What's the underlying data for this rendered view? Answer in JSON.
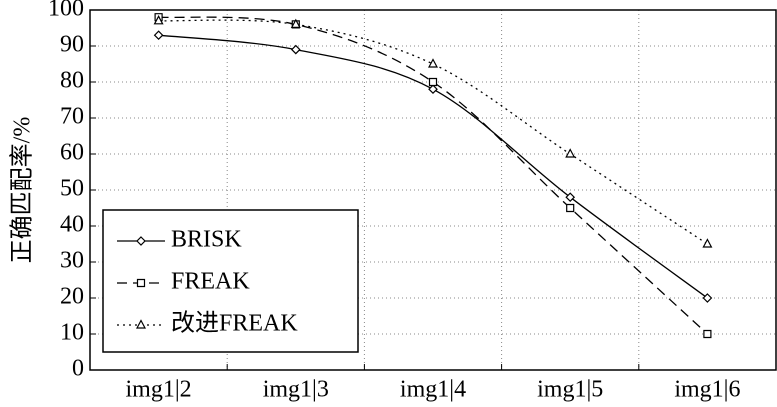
{
  "chart_data": {
    "type": "line",
    "ylabel": "正确匹配率/%",
    "categories": [
      "img1|2",
      "img1|3",
      "img1|4",
      "img1|5",
      "img1|6"
    ],
    "ylim": [
      0,
      100
    ],
    "yticks": [
      0,
      10,
      20,
      30,
      40,
      50,
      60,
      70,
      80,
      90,
      100
    ],
    "grid": true,
    "smooth": true,
    "legend": "lower left",
    "series": [
      {
        "name": "BRISK",
        "color": "#000000",
        "dash": "solid",
        "marker": "diamond",
        "values": [
          93,
          89,
          78,
          48,
          20
        ]
      },
      {
        "name": "FREAK",
        "color": "#000000",
        "dash": "dashed",
        "marker": "square",
        "values": [
          98,
          96,
          80,
          45,
          10
        ]
      },
      {
        "name": "改进FREAK",
        "color": "#000000",
        "dash": "dotted",
        "marker": "triangle",
        "values": [
          97,
          96,
          85,
          60,
          35
        ]
      }
    ]
  }
}
